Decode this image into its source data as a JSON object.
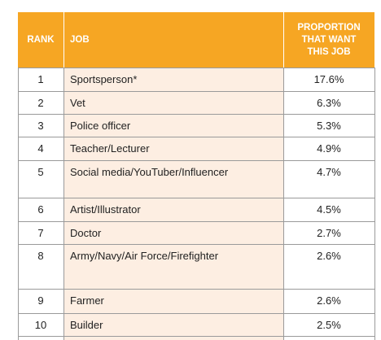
{
  "table": {
    "header": [
      "RANK",
      "JOB",
      "PROPORTION THAT WANT THIS JOB"
    ],
    "rows": [
      [
        "1",
        "Sportsperson*",
        "17.6%"
      ],
      [
        "2",
        "Vet",
        "6.3%"
      ],
      [
        "3",
        "Police officer",
        "5.3%"
      ],
      [
        "4",
        "Teacher/Lecturer",
        "4.9%"
      ],
      [
        "5",
        "Social media/YouTuber/Influencer",
        "4.7%"
      ],
      [
        "6",
        "Artist/Illustrator",
        "4.5%"
      ],
      [
        "7",
        "Doctor",
        "2.7%"
      ],
      [
        "8",
        "Army/Navy/Air Force/Firefighter",
        "2.6%"
      ],
      [
        "9",
        "Farmer",
        "2.6%"
      ],
      [
        "10",
        "Builder",
        "2.5%"
      ]
    ]
  }
}
